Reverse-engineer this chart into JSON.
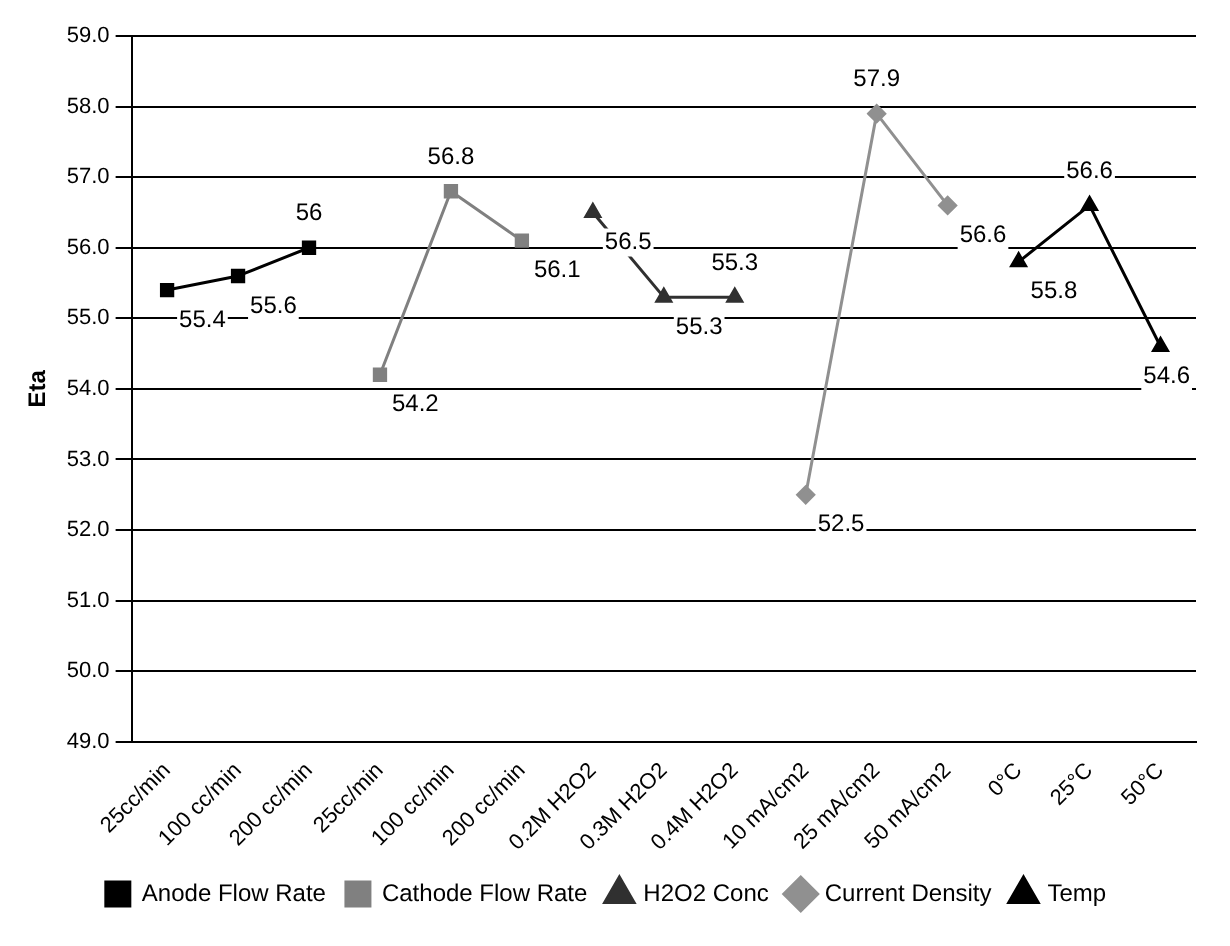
{
  "chart_data": {
    "type": "line",
    "ylabel": "Eta",
    "categories": [
      "25cc/min",
      "100 cc/min",
      "200 cc/min",
      "25cc/min",
      "100 cc/min",
      "200 cc/min",
      "0.2M H2O2",
      "0.3M H2O2",
      "0.4M H2O2",
      "10 mA/cm2",
      "25 mA/cm2",
      "50 mA/cm2",
      "0°C",
      "25°C",
      "50°C"
    ],
    "series": [
      {
        "name": "Anode Flow Rate",
        "color": "#000000",
        "marker": "square",
        "values": [
          55.4,
          55.6,
          56,
          null,
          null,
          null,
          null,
          null,
          null,
          null,
          null,
          null,
          null,
          null,
          null
        ]
      },
      {
        "name": "Cathode Flow Rate",
        "color": "#808080",
        "marker": "square",
        "values": [
          null,
          null,
          null,
          54.2,
          56.8,
          56.1,
          null,
          null,
          null,
          null,
          null,
          null,
          null,
          null,
          null
        ]
      },
      {
        "name": "H2O2 Conc",
        "color": "#303030",
        "marker": "triangle",
        "values": [
          null,
          null,
          null,
          null,
          null,
          null,
          56.5,
          55.3,
          55.3,
          null,
          null,
          null,
          null,
          null,
          null
        ]
      },
      {
        "name": "Current Density",
        "color": "#909090",
        "marker": "diamond",
        "values": [
          null,
          null,
          null,
          null,
          null,
          null,
          null,
          null,
          null,
          52.5,
          57.9,
          56.6,
          null,
          null,
          null
        ]
      },
      {
        "name": "Temp",
        "color": "#000000",
        "marker": "triangle",
        "values": [
          null,
          null,
          null,
          null,
          null,
          null,
          null,
          null,
          null,
          null,
          null,
          null,
          55.8,
          56.6,
          54.6
        ]
      }
    ],
    "ylim": [
      49,
      59
    ],
    "yticks": [
      {
        "value": 49,
        "label": "49.0"
      },
      {
        "value": 50,
        "label": "50.0"
      },
      {
        "value": 51,
        "label": "51.0"
      },
      {
        "value": 52,
        "label": "52.0"
      },
      {
        "value": 53,
        "label": "53.0"
      },
      {
        "value": 54,
        "label": "54.0"
      },
      {
        "value": 55,
        "label": "55.0"
      },
      {
        "value": 56,
        "label": "56.0"
      },
      {
        "value": 57,
        "label": "57.0"
      },
      {
        "value": 58,
        "label": "58.0"
      },
      {
        "value": 59,
        "label": "59.0"
      }
    ],
    "grid": "y",
    "legend": "bottom",
    "data_labels": true
  }
}
